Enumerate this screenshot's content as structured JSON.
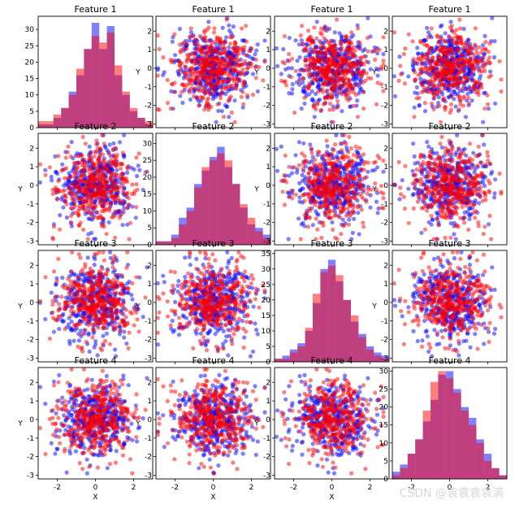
{
  "watermark": "CSDN @袁袁袁袁满",
  "chart_data": {
    "type": "scatter",
    "layout": "pair-plot 4x4",
    "n_points": 400,
    "features": [
      {
        "title": "Feature 1"
      },
      {
        "title": "Feature 2"
      },
      {
        "title": "Feature 3"
      },
      {
        "title": "Feature 4"
      }
    ],
    "xlabel": "X",
    "ylabel": "Y",
    "scatter_xlim": [
      -3,
      3
    ],
    "scatter_ylim": [
      -3.2,
      2.8
    ],
    "xticks": [
      -2,
      0,
      2
    ],
    "yticks_top_rows": [
      -3,
      -2,
      -1,
      0,
      1,
      2
    ],
    "yticks_bottom_rows": [
      -3,
      -2,
      -1,
      0,
      1,
      2,
      3
    ],
    "series": [
      {
        "color": "#0000ff",
        "alpha": 0.5
      },
      {
        "color": "#ff0000",
        "alpha": 0.5
      }
    ],
    "histograms": [
      {
        "feature": 1,
        "bin_edges": [
          -3,
          -2.6,
          -2.2,
          -1.8,
          -1.4,
          -1.0,
          -0.6,
          -0.2,
          0.2,
          0.6,
          1.0,
          1.4,
          1.8,
          2.2,
          2.6,
          3.0
        ],
        "blue": [
          1,
          1,
          3,
          6,
          11,
          16,
          24,
          32,
          24,
          31,
          16,
          10,
          5,
          3,
          1
        ],
        "red": [
          2,
          2,
          4,
          6,
          10,
          18,
          24,
          28,
          26,
          29,
          19,
          11,
          6,
          3,
          2
        ],
        "ylim": [
          0,
          34
        ],
        "yticks": [
          0,
          5,
          10,
          15,
          20,
          25,
          30
        ]
      },
      {
        "feature": 2,
        "bin_edges": [
          -3,
          -2.6,
          -2.2,
          -1.8,
          -1.4,
          -1.0,
          -0.6,
          -0.2,
          0.2,
          0.6,
          1.0,
          1.4,
          1.8,
          2.2,
          2.6,
          3.0
        ],
        "blue": [
          1,
          1,
          3,
          8,
          11,
          18,
          22,
          26,
          29,
          23,
          18,
          11,
          6,
          5,
          3
        ],
        "red": [
          1,
          1,
          2,
          6,
          10,
          17,
          23,
          25,
          27,
          25,
          18,
          12,
          8,
          4,
          2
        ],
        "ylim": [
          0,
          33
        ],
        "yticks": [
          0,
          5,
          10,
          15,
          20,
          25,
          30
        ]
      },
      {
        "feature": 3,
        "bin_edges": [
          -3,
          -2.6,
          -2.2,
          -1.8,
          -1.4,
          -1.0,
          -0.6,
          -0.2,
          0.2,
          0.6,
          1.0,
          1.4,
          1.8,
          2.2,
          2.6,
          3.0
        ],
        "blue": [
          1,
          2,
          4,
          6,
          10,
          19,
          30,
          33,
          26,
          20,
          13,
          9,
          5,
          3,
          2
        ],
        "red": [
          1,
          1,
          3,
          5,
          11,
          22,
          29,
          31,
          28,
          20,
          15,
          8,
          4,
          2,
          1
        ],
        "ylim": [
          0,
          36
        ],
        "yticks": [
          0,
          5,
          10,
          15,
          20,
          25,
          30,
          35
        ]
      },
      {
        "feature": 4,
        "bin_edges": [
          -3,
          -2.6,
          -2.2,
          -1.8,
          -1.4,
          -1.0,
          -0.6,
          -0.2,
          0.2,
          0.6,
          1.0,
          1.4,
          1.8,
          2.2,
          2.6,
          3.0
        ],
        "blue": [
          2,
          4,
          7,
          11,
          16,
          22,
          29,
          30,
          25,
          20,
          17,
          11,
          7,
          3,
          1
        ],
        "red": [
          1,
          3,
          7,
          11,
          19,
          27,
          30,
          28,
          24,
          19,
          15,
          10,
          5,
          3,
          1
        ],
        "ylim": [
          0,
          31
        ],
        "yticks": [
          0,
          5,
          10,
          15,
          20,
          25,
          30
        ]
      }
    ]
  }
}
